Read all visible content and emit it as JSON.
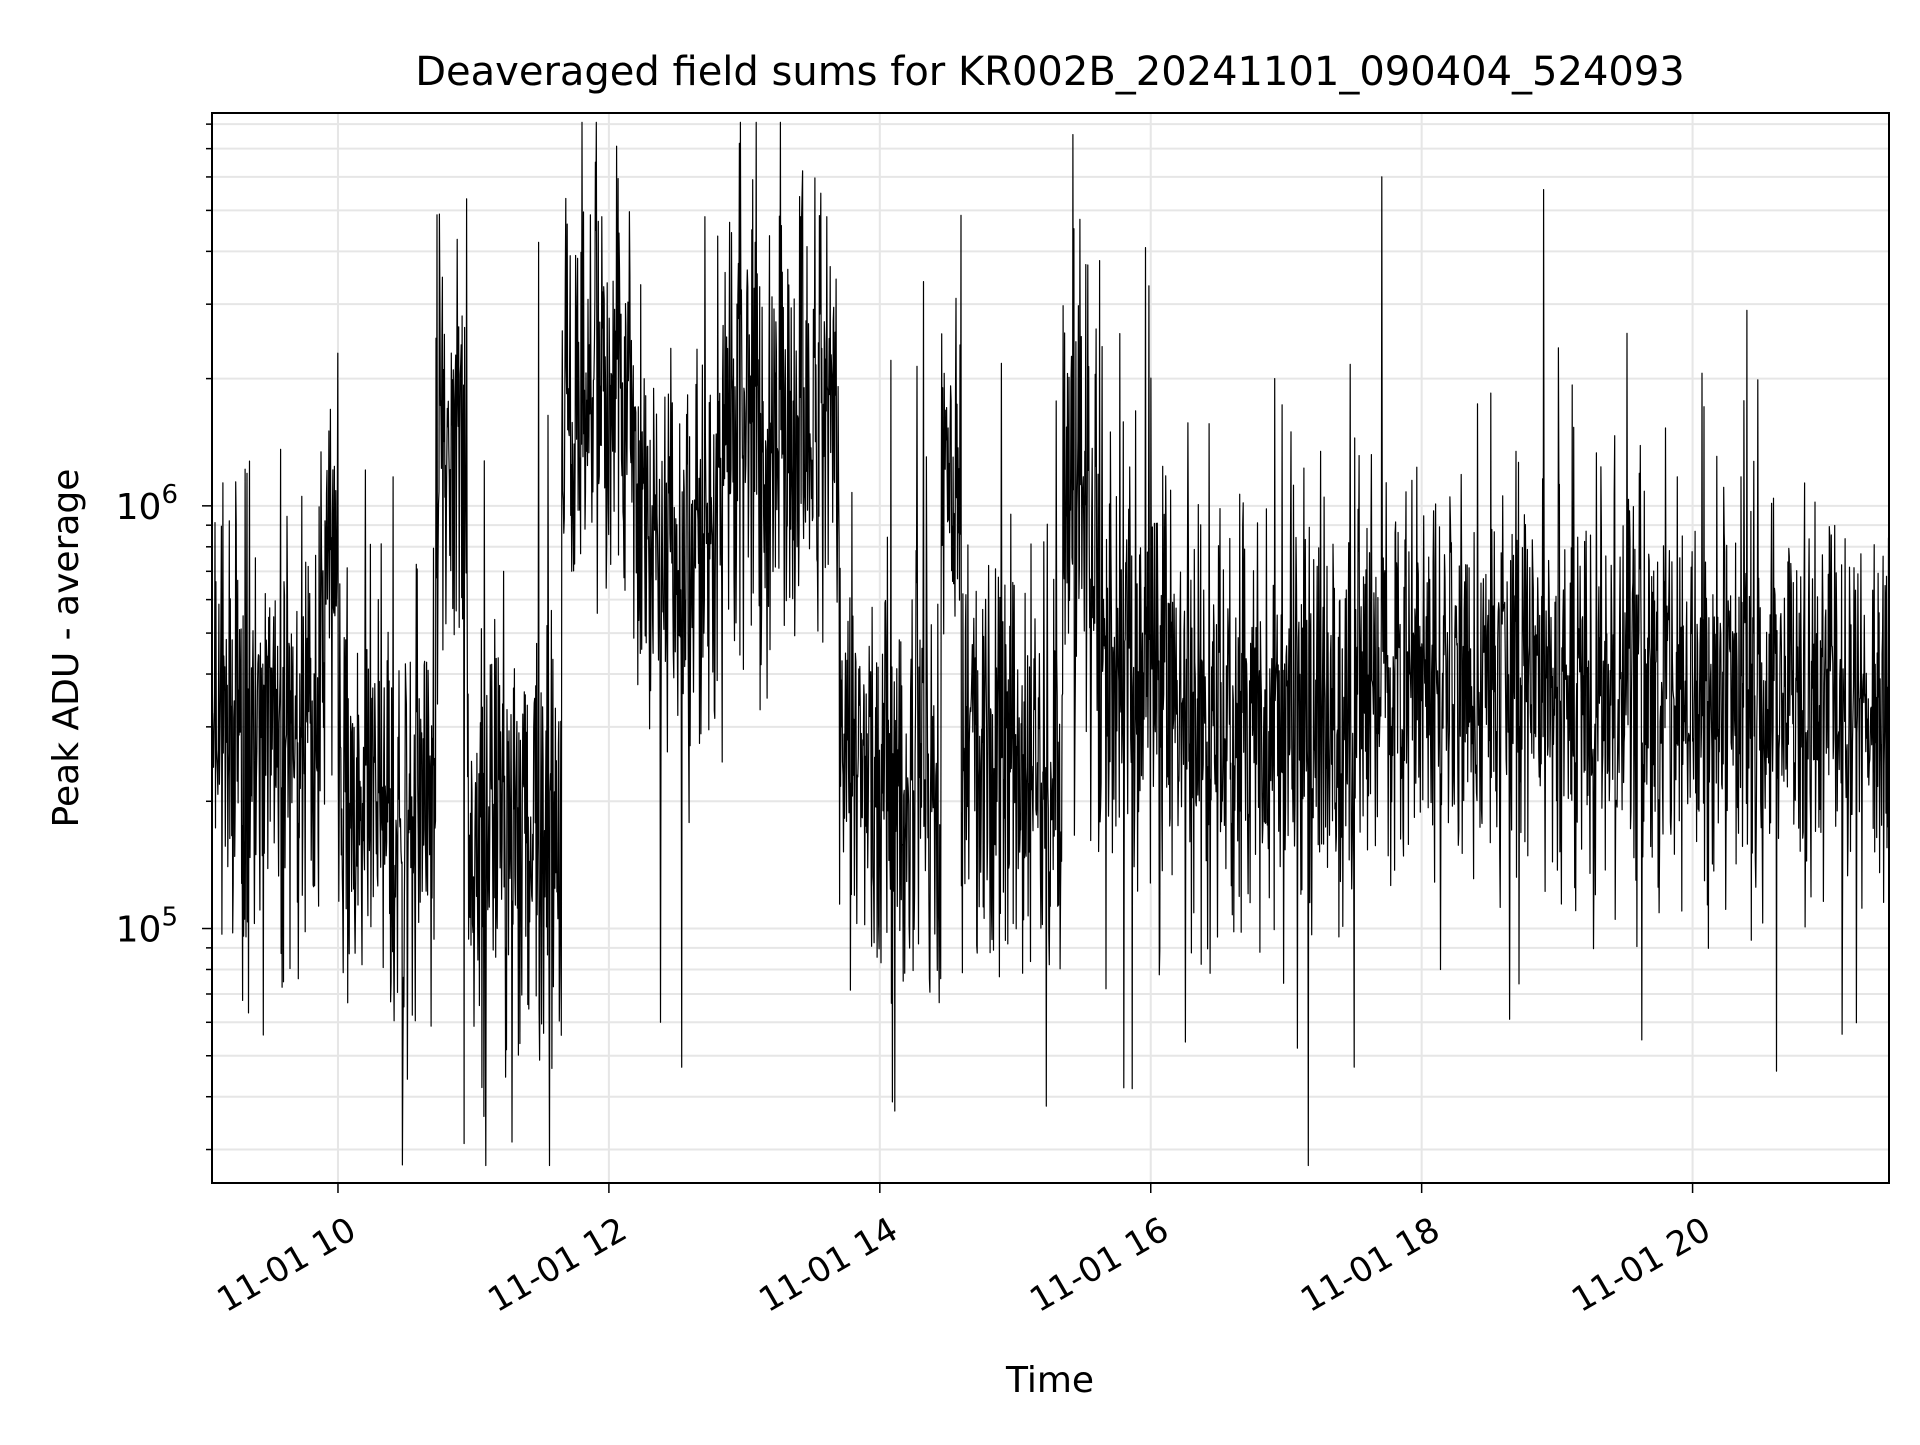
{
  "chart_data": {
    "type": "line",
    "title": "Deaveraged field sums for KR002B_20241101_090404_524093",
    "xlabel": "Time",
    "ylabel": "Peak ADU - average",
    "x_tick_labels": [
      "11-01 10",
      "11-01 12",
      "11-01 14",
      "11-01 16",
      "11-01 18",
      "11-01 20"
    ],
    "x_ticks_hours": [
      10,
      12,
      14,
      16,
      18,
      20
    ],
    "xlim_hours": [
      9.07,
      21.45
    ],
    "y_scale": "log",
    "ylim": [
      25000,
      8500000
    ],
    "y_major_ticks": [
      {
        "value": 100000,
        "base": "10",
        "exp": "5"
      },
      {
        "value": 1000000,
        "base": "10",
        "exp": "6"
      }
    ],
    "grid": true,
    "line_color": "#000000",
    "grid_color": "#e6e6e6",
    "series": [
      {
        "segments": [
          {
            "t0": 9.07,
            "t1": 9.9,
            "median": 300000,
            "spread": 0.58
          },
          {
            "t0": 9.9,
            "t1": 10.0,
            "median": 750000,
            "spread": 0.45
          },
          {
            "t0": 10.0,
            "t1": 10.72,
            "median": 200000,
            "spread": 0.55
          },
          {
            "t0": 10.72,
            "t1": 10.95,
            "median": 1500000,
            "spread": 0.55
          },
          {
            "t0": 10.95,
            "t1": 11.65,
            "median": 170000,
            "spread": 0.58
          },
          {
            "t0": 11.65,
            "t1": 12.2,
            "median": 1800000,
            "spread": 0.55
          },
          {
            "t0": 12.2,
            "t1": 12.8,
            "median": 750000,
            "spread": 0.6
          },
          {
            "t0": 12.8,
            "t1": 13.7,
            "median": 1500000,
            "spread": 0.6
          },
          {
            "t0": 13.7,
            "t1": 14.45,
            "median": 220000,
            "spread": 0.55
          },
          {
            "t0": 14.45,
            "t1": 14.6,
            "median": 1100000,
            "spread": 0.5
          },
          {
            "t0": 14.6,
            "t1": 15.35,
            "median": 230000,
            "spread": 0.55
          },
          {
            "t0": 15.35,
            "t1": 15.55,
            "median": 1200000,
            "spread": 0.55
          },
          {
            "t0": 15.55,
            "t1": 16.2,
            "median": 420000,
            "spread": 0.58
          },
          {
            "t0": 16.2,
            "t1": 17.5,
            "median": 300000,
            "spread": 0.55
          },
          {
            "t0": 17.5,
            "t1": 19.3,
            "median": 380000,
            "spread": 0.52
          },
          {
            "t0": 19.3,
            "t1": 20.5,
            "median": 370000,
            "spread": 0.55
          },
          {
            "t0": 20.5,
            "t1": 21.45,
            "median": 340000,
            "spread": 0.5
          }
        ],
        "spikes": [
          {
            "t": 10.93,
            "value": 31000
          },
          {
            "t": 11.48,
            "value": 4200000
          },
          {
            "t": 14.11,
            "value": 37000
          },
          {
            "t": 15.23,
            "value": 38000
          },
          {
            "t": 15.8,
            "value": 42000
          },
          {
            "t": 17.5,
            "value": 47000
          },
          {
            "t": 18.9,
            "value": 5600000
          },
          {
            "t": 20.4,
            "value": 2900000
          },
          {
            "t": 9.45,
            "value": 56000
          },
          {
            "t": 10.48,
            "value": 50000
          },
          {
            "t": 11.9,
            "value": 6500000
          },
          {
            "t": 13.43,
            "value": 6200000
          },
          {
            "t": 10.75,
            "value": 4900000
          },
          {
            "t": 12.38,
            "value": 60000
          },
          {
            "t": 18.65,
            "value": 61000
          }
        ]
      }
    ]
  }
}
